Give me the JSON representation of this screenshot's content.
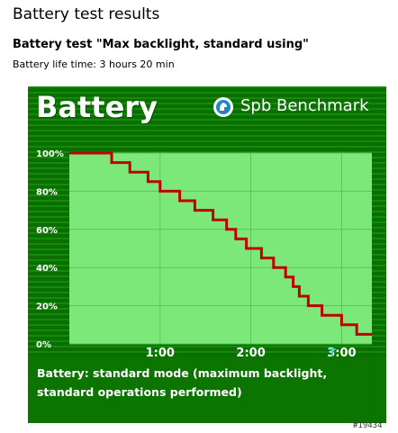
{
  "page": {
    "title": "Battery test results",
    "test_title": "Battery test \"Max backlight, standard using\"",
    "life_time": "Battery life time: 3 hours 20 min",
    "stamp": "#19434"
  },
  "panel": {
    "heading": "Battery",
    "brand": "Spb Benchmark",
    "caption_line1": "Battery: standard mode (maximum backlight,",
    "caption_line2": "standard operations performed)",
    "colors": {
      "panel": "#0a6e00",
      "plot": "#7de87a",
      "line": "#c00000",
      "grid": "#5cc45a"
    }
  },
  "chart_data": {
    "type": "line",
    "step": true,
    "xlabel": "",
    "ylabel": "",
    "xlim": [
      0,
      200
    ],
    "ylim": [
      0,
      100
    ],
    "x_ticks": [
      {
        "value": 60,
        "label": "1:00"
      },
      {
        "value": 120,
        "label": "2:00"
      },
      {
        "value": 180,
        "label": "3:00"
      }
    ],
    "y_ticks": [
      {
        "value": 0,
        "label": "0%"
      },
      {
        "value": 20,
        "label": "20%"
      },
      {
        "value": 40,
        "label": "40%"
      },
      {
        "value": 60,
        "label": "60%"
      },
      {
        "value": 80,
        "label": "80%"
      },
      {
        "value": 100,
        "label": "100%"
      }
    ],
    "grid": true,
    "marker": {
      "value": 179,
      "label": "T"
    },
    "series": [
      {
        "values": [
          [
            0,
            100
          ],
          [
            28,
            100
          ],
          [
            28,
            95
          ],
          [
            40,
            95
          ],
          [
            40,
            90
          ],
          [
            52,
            90
          ],
          [
            52,
            85
          ],
          [
            60,
            85
          ],
          [
            60,
            80
          ],
          [
            73,
            80
          ],
          [
            73,
            75
          ],
          [
            83,
            75
          ],
          [
            83,
            70
          ],
          [
            95,
            70
          ],
          [
            95,
            65
          ],
          [
            104,
            65
          ],
          [
            104,
            60
          ],
          [
            110,
            60
          ],
          [
            110,
            55
          ],
          [
            117,
            55
          ],
          [
            117,
            50
          ],
          [
            127,
            50
          ],
          [
            127,
            45
          ],
          [
            135,
            45
          ],
          [
            135,
            40
          ],
          [
            143,
            40
          ],
          [
            143,
            35
          ],
          [
            148,
            35
          ],
          [
            148,
            30
          ],
          [
            152,
            30
          ],
          [
            152,
            25
          ],
          [
            158,
            25
          ],
          [
            158,
            20
          ],
          [
            167,
            20
          ],
          [
            167,
            15
          ],
          [
            180,
            15
          ],
          [
            180,
            10
          ],
          [
            190,
            10
          ],
          [
            190,
            5
          ],
          [
            200,
            5
          ]
        ]
      }
    ]
  }
}
